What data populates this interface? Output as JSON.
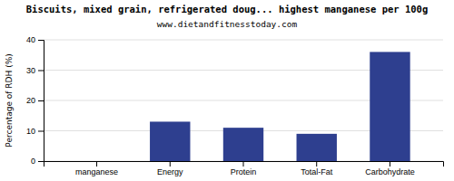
{
  "chart_data": {
    "type": "bar",
    "title": "Biscuits, mixed grain, refrigerated doug... highest manganese per 100g",
    "subtitle": "www.dietandfitnesstoday.com",
    "y_label": "Percentage of RDH (%)",
    "categories": [
      "manganese",
      "Energy",
      "Protein",
      "Total-Fat",
      "Carbohydrate"
    ],
    "values": [
      0,
      13.0,
      11.0,
      9.0,
      36.0
    ],
    "color": "#2e3f8f",
    "ylim": [
      0,
      40
    ],
    "yticks": [
      0,
      10,
      20,
      30,
      40
    ],
    "grid": true
  }
}
